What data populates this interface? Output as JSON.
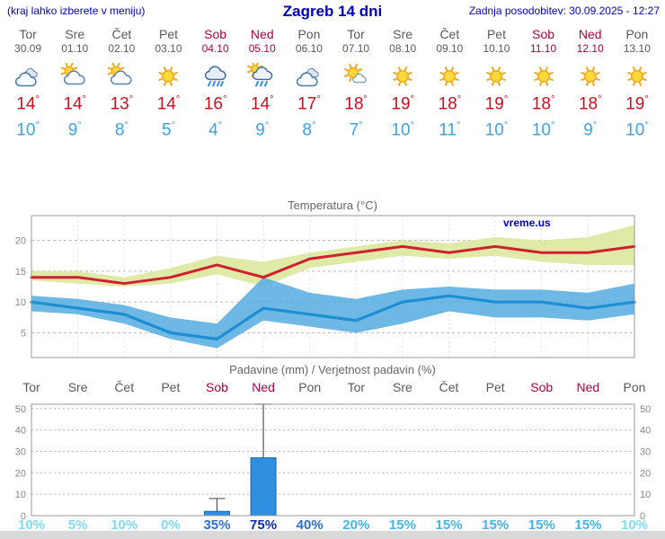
{
  "header": {
    "left_note": "(kraj lahko izberete v meniju)",
    "title": "Zagreb 14 dni",
    "updated": "Zadnja posodobitev: 30.09.2025 - 12:27"
  },
  "units": {
    "degree": "°"
  },
  "watermark": "vreme.us",
  "colors": {
    "weekday": "#5a5a5a",
    "weekend": "#b00040",
    "high_temp": "#cc1020",
    "low_temp": "#3ea2e6",
    "accent_blue": "#0000cc",
    "bar_fill": "#2e8fe0",
    "high_band": "#dce9a0",
    "low_band": "#55abe0"
  },
  "days": [
    {
      "name": "Tor",
      "date": "30.09",
      "weekend": false,
      "icon": "cloudy",
      "high": "14",
      "low": "10"
    },
    {
      "name": "Sre",
      "date": "01.10",
      "weekend": false,
      "icon": "partly-cloudy",
      "high": "14",
      "low": "9"
    },
    {
      "name": "Čet",
      "date": "02.10",
      "weekend": false,
      "icon": "partly-cloudy",
      "high": "13",
      "low": "8"
    },
    {
      "name": "Pet",
      "date": "03.10",
      "weekend": false,
      "icon": "sunny",
      "high": "14",
      "low": "5"
    },
    {
      "name": "Sob",
      "date": "04.10",
      "weekend": true,
      "icon": "rain",
      "high": "16",
      "low": "4"
    },
    {
      "name": "Ned",
      "date": "05.10",
      "weekend": true,
      "icon": "rain-showers",
      "high": "14",
      "low": "9"
    },
    {
      "name": "Pon",
      "date": "06.10",
      "weekend": false,
      "icon": "cloudy",
      "high": "17",
      "low": "8"
    },
    {
      "name": "Tor",
      "date": "07.10",
      "weekend": false,
      "icon": "mostly-sunny",
      "high": "18",
      "low": "7"
    },
    {
      "name": "Sre",
      "date": "08.10",
      "weekend": false,
      "icon": "sunny",
      "high": "19",
      "low": "10"
    },
    {
      "name": "Čet",
      "date": "09.10",
      "weekend": false,
      "icon": "sunny",
      "high": "18",
      "low": "11"
    },
    {
      "name": "Pet",
      "date": "10.10",
      "weekend": false,
      "icon": "sunny",
      "high": "19",
      "low": "10"
    },
    {
      "name": "Sob",
      "date": "11.10",
      "weekend": true,
      "icon": "sunny",
      "high": "18",
      "low": "10"
    },
    {
      "name": "Ned",
      "date": "12.10",
      "weekend": true,
      "icon": "sunny",
      "high": "18",
      "low": "9"
    },
    {
      "name": "Pon",
      "date": "13.10",
      "weekend": false,
      "icon": "sunny",
      "high": "19",
      "low": "10"
    }
  ],
  "chart_data": [
    {
      "type": "area",
      "title": "Temperatura (°C)",
      "x": [
        "Tor 30.09",
        "Sre 01.10",
        "Čet 02.10",
        "Pet 03.10",
        "Sob 04.10",
        "Ned 05.10",
        "Pon 06.10",
        "Tor 07.10",
        "Sre 08.10",
        "Čet 09.10",
        "Pet 10.10",
        "Sob 11.10",
        "Ned 12.10",
        "Pon 13.10"
      ],
      "series": [
        {
          "name": "max_temp",
          "values": [
            14,
            14,
            13,
            14,
            16,
            14,
            17,
            18,
            19,
            18,
            19,
            18,
            18,
            19
          ]
        },
        {
          "name": "min_temp",
          "values": [
            10,
            9,
            8,
            5,
            4,
            9,
            8,
            7,
            10,
            11,
            10,
            10,
            9,
            10
          ]
        },
        {
          "name": "max_range_upper",
          "values": [
            15,
            15,
            14,
            15.5,
            17.5,
            16.5,
            18,
            19,
            20,
            19.5,
            20.5,
            20,
            20.5,
            22.5
          ]
        },
        {
          "name": "max_range_lower",
          "values": [
            13.5,
            13,
            12.5,
            13,
            14.5,
            12.5,
            15.5,
            16.5,
            17.5,
            17,
            17.5,
            16.5,
            16,
            16
          ]
        },
        {
          "name": "min_range_upper",
          "values": [
            11,
            10.5,
            9.5,
            7.5,
            6.5,
            14,
            11.5,
            10.5,
            12,
            12.5,
            12,
            12,
            11.5,
            13
          ]
        },
        {
          "name": "min_range_lower",
          "values": [
            8.5,
            8,
            6.5,
            4,
            2.5,
            7,
            6,
            5,
            6.5,
            8.5,
            7.5,
            7.5,
            7,
            8
          ]
        }
      ],
      "ylim": [
        1,
        24
      ],
      "yticks": [
        5,
        10,
        15,
        20
      ],
      "grid": true,
      "legend": "none"
    },
    {
      "type": "bar",
      "title": "Padavine (mm) / Verjetnost padavin (%)",
      "categories": [
        "Tor",
        "Sre",
        "Čet",
        "Pet",
        "Sob",
        "Ned",
        "Pon",
        "Tor",
        "Sre",
        "Čet",
        "Pet",
        "Sob",
        "Ned",
        "Pon"
      ],
      "precip_mm": [
        0,
        0,
        0,
        0,
        2,
        27,
        0,
        0,
        0,
        0,
        0,
        0,
        0,
        0
      ],
      "precip_max_mm": [
        0,
        0,
        0,
        0,
        8,
        52,
        0,
        0,
        0,
        0,
        0,
        0,
        0,
        0
      ],
      "probability_pct": [
        10,
        5,
        10,
        0,
        35,
        75,
        40,
        20,
        15,
        15,
        15,
        15,
        15,
        10
      ],
      "prob_labels": [
        "10%",
        "5%",
        "10%",
        "0%",
        "35%",
        "75%",
        "40%",
        "20%",
        "15%",
        "15%",
        "15%",
        "15%",
        "15%",
        "10%"
      ],
      "ylim": [
        0,
        52
      ],
      "yticks": [
        0,
        10,
        20,
        30,
        40,
        50
      ],
      "grid": true,
      "legend": "none"
    }
  ]
}
